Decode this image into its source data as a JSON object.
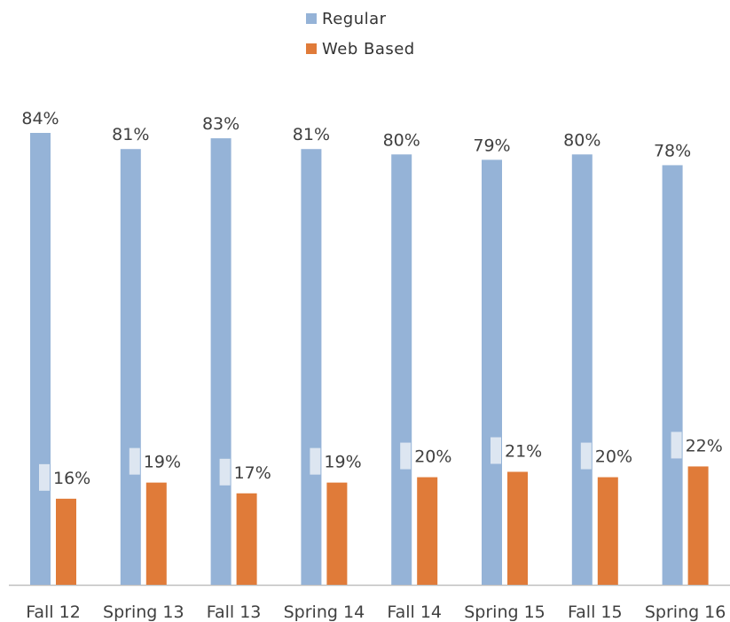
{
  "chart_data": {
    "type": "bar",
    "categories": [
      "Fall 12",
      "Spring 13",
      "Fall 13",
      "Spring 14",
      "Fall 14",
      "Spring 15",
      "Fall 15",
      "Spring 16"
    ],
    "series": [
      {
        "name": "Regular",
        "values": [
          84,
          81,
          83,
          81,
          80,
          79,
          80,
          78
        ],
        "labels": [
          "84%",
          "81%",
          "83%",
          "81%",
          "80%",
          "79%",
          "80%",
          "78%"
        ],
        "color": "#95b3d7"
      },
      {
        "name": "Web Based",
        "values": [
          16,
          19,
          17,
          19,
          20,
          21,
          20,
          22
        ],
        "labels": [
          "16%",
          "19%",
          "17%",
          "19%",
          "20%",
          "21%",
          "20%",
          "22%"
        ],
        "color": "#e07b39"
      }
    ],
    "ylim": [
      0,
      84
    ],
    "legend": "top-center",
    "grid": false
  }
}
